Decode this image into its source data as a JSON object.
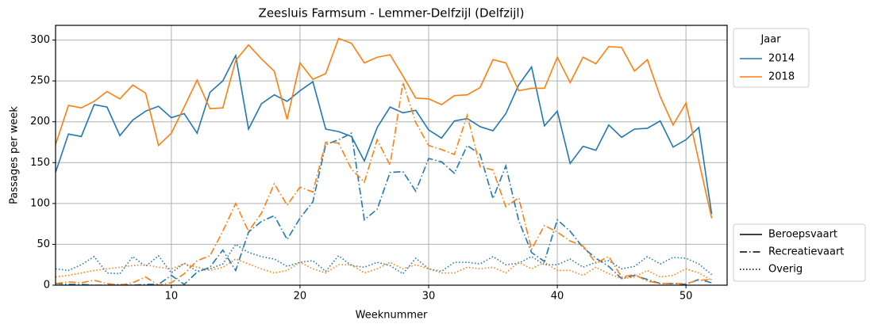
{
  "chart_data": {
    "type": "line",
    "title": "Zeesluis Farmsum - Lemmer-Delfzijl (Delfzijl)",
    "xlabel": "Weeknummer",
    "ylabel": "Passages per week",
    "x": [
      1,
      2,
      3,
      4,
      5,
      6,
      7,
      8,
      9,
      10,
      11,
      12,
      13,
      14,
      15,
      16,
      17,
      18,
      19,
      20,
      21,
      22,
      23,
      24,
      25,
      26,
      27,
      28,
      29,
      30,
      31,
      32,
      33,
      34,
      35,
      36,
      37,
      38,
      39,
      40,
      41,
      42,
      43,
      44,
      45,
      46,
      47,
      48,
      49,
      50,
      51,
      52
    ],
    "xlim": [
      1,
      53.2
    ],
    "xticks": [
      10,
      20,
      30,
      40,
      50
    ],
    "ylim": [
      0,
      318
    ],
    "yticks": [
      0,
      50,
      100,
      150,
      200,
      250,
      300
    ],
    "grid": true,
    "legend_title": "Jaar",
    "line_styles": [
      {
        "name": "Beroepsvaart",
        "dash": "solid"
      },
      {
        "name": "Recreatievaart",
        "dash": "dashdot"
      },
      {
        "name": "Overig",
        "dash": "dotted"
      }
    ],
    "series": [
      {
        "name": "2014",
        "color": "#1f77b4",
        "lines": [
          [
            138,
            185,
            182,
            221,
            218,
            183,
            202,
            213,
            219,
            205,
            210,
            186,
            236,
            250,
            281,
            191,
            222,
            233,
            225,
            238,
            249,
            191,
            188,
            182,
            152,
            193,
            218,
            211,
            214,
            190,
            180,
            201,
            204,
            194,
            189,
            210,
            245,
            267,
            195,
            213,
            149,
            170,
            165,
            196,
            181,
            191,
            192,
            201,
            169,
            178,
            193,
            87
          ],
          [
            2,
            1,
            1,
            0,
            0,
            1,
            0,
            1,
            1,
            12,
            1,
            16,
            22,
            43,
            18,
            65,
            78,
            85,
            56,
            82,
            102,
            172,
            178,
            186,
            80,
            93,
            138,
            139,
            115,
            155,
            151,
            137,
            171,
            160,
            106,
            146,
            79,
            40,
            29,
            80,
            66,
            46,
            33,
            23,
            8,
            12,
            7,
            2,
            2,
            1,
            7,
            3
          ],
          [
            20,
            18,
            25,
            35,
            15,
            14,
            35,
            23,
            36,
            15,
            27,
            17,
            20,
            26,
            50,
            40,
            35,
            32,
            23,
            28,
            30,
            17,
            36,
            24,
            22,
            28,
            24,
            14,
            33,
            20,
            17,
            28,
            28,
            26,
            35,
            25,
            27,
            35,
            25,
            25,
            32,
            22,
            28,
            30,
            20,
            23,
            35,
            26,
            34,
            33,
            26,
            13
          ]
        ]
      },
      {
        "name": "2018",
        "color": "#ff7f0e",
        "lines": [
          [
            172,
            220,
            217,
            225,
            237,
            228,
            245,
            235,
            171,
            186,
            218,
            251,
            216,
            217,
            275,
            294,
            277,
            262,
            203,
            272,
            252,
            259,
            302,
            296,
            272,
            279,
            282,
            256,
            229,
            228,
            221,
            232,
            233,
            242,
            276,
            272,
            238,
            241,
            241,
            279,
            248,
            279,
            271,
            292,
            291,
            262,
            276,
            231,
            196,
            223,
            152,
            82
          ],
          [
            2,
            4,
            3,
            6,
            2,
            0,
            3,
            10,
            0,
            3,
            14,
            30,
            36,
            66,
            100,
            66,
            88,
            124,
            98,
            120,
            114,
            175,
            174,
            142,
            126,
            178,
            147,
            248,
            199,
            171,
            166,
            160,
            208,
            145,
            141,
            96,
            107,
            44,
            73,
            65,
            54,
            48,
            27,
            35,
            10,
            13,
            5,
            2,
            2,
            2,
            6,
            7
          ],
          [
            10,
            12,
            15,
            18,
            20,
            22,
            24,
            25,
            22,
            20,
            26,
            22,
            18,
            22,
            32,
            26,
            20,
            15,
            18,
            28,
            20,
            15,
            25,
            25,
            15,
            20,
            28,
            20,
            25,
            20,
            15,
            15,
            22,
            20,
            22,
            15,
            28,
            20,
            28,
            18,
            18,
            12,
            22,
            14,
            8,
            10,
            18,
            10,
            12,
            20,
            15,
            6
          ]
        ]
      }
    ]
  }
}
